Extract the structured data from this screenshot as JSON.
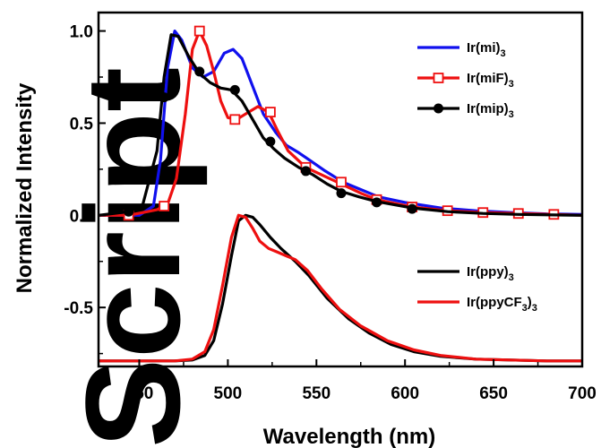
{
  "watermark": "Script",
  "chart_data": {
    "type": "line",
    "xlabel": "Wavelength (nm)",
    "ylabel": "Normalized Intensity",
    "xlim": [
      427,
      700
    ],
    "ylim": [
      -0.82,
      1.1
    ],
    "xticks": [
      450,
      500,
      550,
      600,
      650,
      700
    ],
    "yticks": [
      -0.5,
      0.0,
      0.5,
      1.0
    ],
    "xtick_labels": [
      "450",
      "500",
      "550",
      "600",
      "650",
      "700"
    ],
    "ytick_labels": [
      "-0.5",
      "0.0",
      "0.5",
      "1.0"
    ],
    "legend_top": [
      "Ir(mi)3",
      "Ir(miF)3",
      "Ir(mip)3"
    ],
    "legend_bottom": [
      "Ir(ppy)3",
      "Ir(ppyCF3)3"
    ],
    "series": [
      {
        "name": "Ir(mi)3",
        "color": "#1010ee",
        "marker": "none",
        "x": [
          427,
          450,
          458,
          462,
          466,
          470,
          474,
          480,
          486,
          492,
          498,
          503,
          508,
          514,
          520,
          527,
          533,
          540,
          546,
          555,
          565,
          575,
          585,
          600,
          620,
          640,
          660,
          680,
          700
        ],
        "y": [
          0.0,
          0.0,
          0.05,
          0.3,
          0.8,
          1.0,
          0.95,
          0.8,
          0.75,
          0.78,
          0.88,
          0.9,
          0.85,
          0.7,
          0.55,
          0.45,
          0.38,
          0.34,
          0.3,
          0.24,
          0.18,
          0.14,
          0.1,
          0.07,
          0.04,
          0.025,
          0.015,
          0.008,
          0.005
        ]
      },
      {
        "name": "Ir(miF)3",
        "color": "#ee1010",
        "marker": "square-open",
        "x": [
          427,
          444,
          460,
          466,
          471,
          476,
          480,
          484,
          488,
          492,
          496,
          500,
          505,
          510,
          517,
          523,
          528,
          534,
          544,
          555,
          564,
          575,
          584,
          604,
          624,
          644,
          664,
          684,
          700
        ],
        "y": [
          0.0,
          0.0,
          0.03,
          0.06,
          0.2,
          0.55,
          0.9,
          1.0,
          0.92,
          0.78,
          0.62,
          0.53,
          0.52,
          0.55,
          0.59,
          0.56,
          0.46,
          0.35,
          0.26,
          0.21,
          0.17,
          0.12,
          0.085,
          0.045,
          0.025,
          0.015,
          0.01,
          0.005,
          0.0
        ],
        "markers_x": [
          444,
          464,
          484,
          504,
          524,
          544,
          564,
          584,
          604,
          624,
          644,
          664,
          684
        ],
        "markers_y": [
          0.0,
          0.05,
          1.0,
          0.52,
          0.56,
          0.26,
          0.18,
          0.085,
          0.045,
          0.025,
          0.015,
          0.01,
          0.005
        ]
      },
      {
        "name": "Ir(mip)3",
        "color": "#000000",
        "marker": "circle-filled",
        "x": [
          427,
          444,
          452,
          460,
          464,
          468,
          472,
          478,
          484,
          490,
          496,
          502,
          508,
          514,
          520,
          526,
          532,
          540,
          548,
          556,
          564,
          574,
          584,
          604,
          624,
          644,
          664,
          684,
          700
        ],
        "y": [
          0.0,
          0.02,
          0.06,
          0.35,
          0.75,
          0.98,
          0.97,
          0.86,
          0.77,
          0.72,
          0.69,
          0.68,
          0.62,
          0.52,
          0.42,
          0.36,
          0.31,
          0.26,
          0.22,
          0.17,
          0.13,
          0.1,
          0.075,
          0.04,
          0.02,
          0.01,
          0.005,
          0.002,
          0.0
        ],
        "markers_x": [
          444,
          464,
          484,
          504,
          524,
          544,
          564,
          584,
          604
        ],
        "markers_y": [
          0.02,
          0.64,
          0.78,
          0.68,
          0.4,
          0.24,
          0.12,
          0.07,
          0.035
        ]
      },
      {
        "name": "Ir(ppy)3",
        "color": "#000000",
        "marker": "none",
        "x": [
          427,
          470,
          480,
          487,
          492,
          497,
          502,
          506,
          510,
          514,
          518,
          524,
          530,
          538,
          546,
          556,
          568,
          580,
          592,
          605,
          620,
          640,
          660,
          680,
          700
        ],
        "y": [
          -0.79,
          -0.79,
          -0.785,
          -0.76,
          -0.68,
          -0.48,
          -0.22,
          -0.03,
          0.0,
          -0.01,
          -0.05,
          -0.12,
          -0.18,
          -0.25,
          -0.33,
          -0.45,
          -0.56,
          -0.64,
          -0.7,
          -0.74,
          -0.765,
          -0.78,
          -0.785,
          -0.79,
          -0.79
        ]
      },
      {
        "name": "Ir(ppyCF3)3",
        "color": "#ee1010",
        "marker": "none",
        "x": [
          427,
          470,
          480,
          487,
          492,
          497,
          502,
          506,
          510,
          514,
          518,
          523,
          528,
          533,
          538,
          545,
          553,
          563,
          575,
          590,
          605,
          620,
          640,
          660,
          680,
          700
        ],
        "y": [
          -0.79,
          -0.79,
          -0.78,
          -0.74,
          -0.62,
          -0.38,
          -0.12,
          0.0,
          -0.01,
          -0.07,
          -0.14,
          -0.18,
          -0.2,
          -0.22,
          -0.24,
          -0.3,
          -0.4,
          -0.51,
          -0.6,
          -0.68,
          -0.73,
          -0.76,
          -0.78,
          -0.785,
          -0.79,
          -0.79
        ]
      }
    ]
  }
}
